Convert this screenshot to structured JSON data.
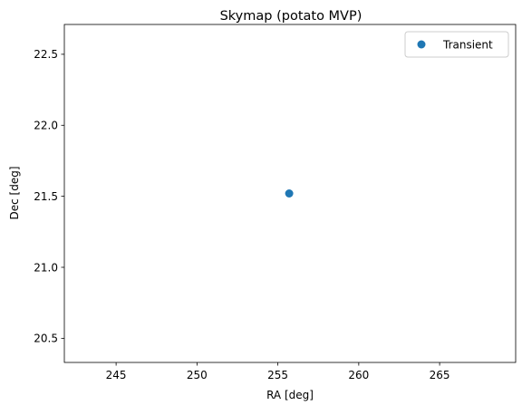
{
  "chart_data": {
    "type": "scatter",
    "title": "Skymap (potato MVP)",
    "xlabel": "RA [deg]",
    "ylabel": "Dec [deg]",
    "xlim": [
      241.8,
      269.7
    ],
    "ylim": [
      20.33,
      22.71
    ],
    "xticks": [
      245,
      250,
      255,
      260,
      265
    ],
    "yticks": [
      20.5,
      21.0,
      21.5,
      22.0,
      22.5
    ],
    "xtick_labels": [
      "245",
      "250",
      "255",
      "260",
      "265"
    ],
    "ytick_labels": [
      "20.5",
      "21.0",
      "21.5",
      "22.0",
      "22.5"
    ],
    "grid": false,
    "legend_position": "top-right",
    "series": [
      {
        "name": "Transient",
        "color": "#1f77b4",
        "marker": "circle",
        "x": [
          255.7
        ],
        "y": [
          21.52
        ]
      }
    ]
  }
}
